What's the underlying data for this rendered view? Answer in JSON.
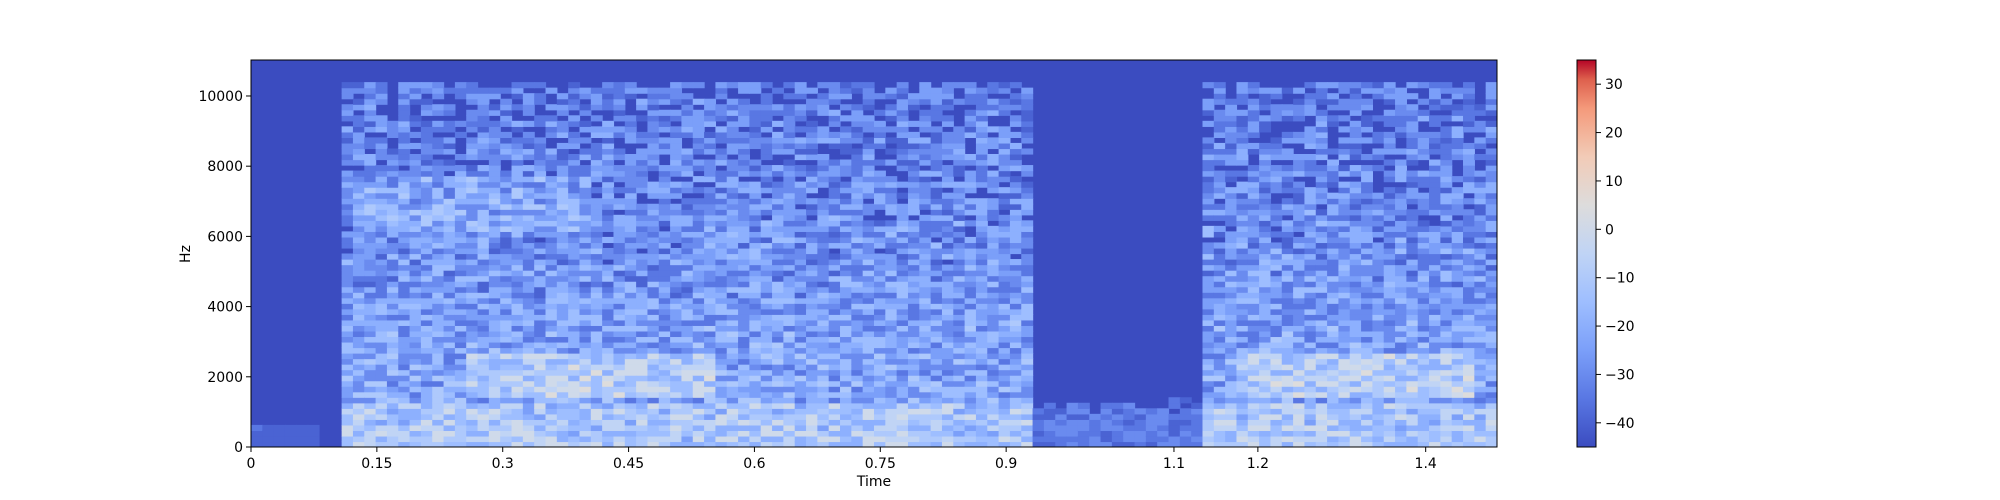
{
  "chart_data": {
    "type": "heatmap",
    "title": "",
    "xlabel": "Time",
    "ylabel": "Hz",
    "xlim": [
      0,
      1.485
    ],
    "ylim": [
      0,
      11025
    ],
    "xticks": [
      0,
      0.15,
      0.3,
      0.45,
      0.6,
      0.75,
      0.9,
      1.1,
      1.2,
      1.4
    ],
    "xtick_labels": [
      "0",
      "0.15",
      "0.3",
      "0.45",
      "0.6",
      "0.75",
      "0.9",
      "1.1",
      "1.2",
      "1.4"
    ],
    "yticks": [
      0,
      2000,
      4000,
      6000,
      8000,
      10000
    ],
    "ytick_labels": [
      "0",
      "2000",
      "4000",
      "6000",
      "8000",
      "10000"
    ],
    "colormap": "coolwarm",
    "colorbar": {
      "range": [
        -45,
        35
      ],
      "ticks": [
        -40,
        -30,
        -20,
        -10,
        0,
        10,
        20,
        30
      ],
      "tick_labels": [
        "−40",
        "−30",
        "−20",
        "−10",
        "0",
        "10",
        "20",
        "30"
      ]
    },
    "segments": [
      {
        "t_start": 0.0,
        "t_end": 0.11,
        "level": "silence"
      },
      {
        "t_start": 0.11,
        "t_end": 0.93,
        "level": "speech"
      },
      {
        "t_start": 0.93,
        "t_end": 1.13,
        "level": "low-energy"
      },
      {
        "t_start": 1.13,
        "t_end": 1.485,
        "level": "speech"
      }
    ],
    "grid": false,
    "legend": "colorbar-right"
  },
  "colors": {
    "background": "#3b4cc0",
    "hot": "#b40426",
    "neutral": "#dddddd"
  }
}
